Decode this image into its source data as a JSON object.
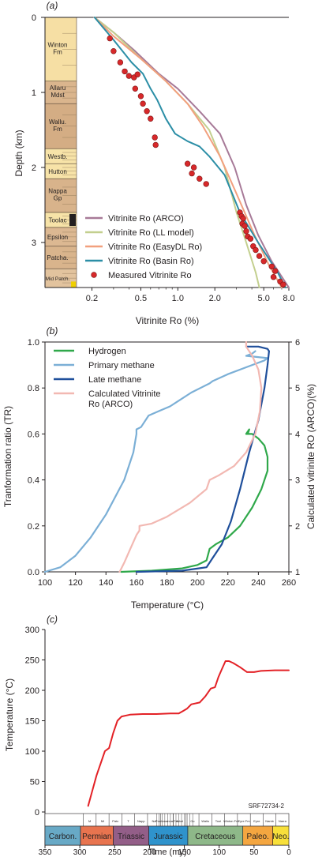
{
  "chart_data": [
    {
      "panel_label": "(a)",
      "type": "line",
      "xlabel": "Vitrinite Ro (%)",
      "ylabel": "Depth (km)",
      "x_scale": "log",
      "xlim": [
        0.15,
        8.0
      ],
      "ylim": [
        0,
        3.6
      ],
      "y_inverted": true,
      "xticks": [
        "0.2",
        "0.5",
        "1.0",
        "2.0",
        "5.0",
        "8.0"
      ],
      "yticks": [
        "0",
        "1",
        "2",
        "3"
      ],
      "stratigraphy": [
        {
          "name": "Winton\nFm",
          "top": 0.0,
          "base": 0.85,
          "color": "#f6dfa4"
        },
        {
          "name": "Allaru\nMdst",
          "top": 0.85,
          "base": 1.15,
          "color": "#dab58d"
        },
        {
          "name": "Wallu.\nFm",
          "top": 1.15,
          "base": 1.75,
          "color": "#d4ad84"
        },
        {
          "name": "Westb.",
          "top": 1.75,
          "base": 1.95,
          "color": "#f7e3a8"
        },
        {
          "name": "Hutton",
          "top": 1.95,
          "base": 2.15,
          "color": "#f7e3a8"
        },
        {
          "name": "Nappa\nGp",
          "top": 2.15,
          "base": 2.6,
          "color": "#d8b38b"
        },
        {
          "name": "Toolac",
          "top": 2.6,
          "base": 2.8,
          "color": "#f7e3a8"
        },
        {
          "name": "Epsilon",
          "top": 2.8,
          "base": 3.05,
          "color": "#dcb892"
        },
        {
          "name": "Patcha.",
          "top": 3.05,
          "base": 3.35,
          "color": "#d9b48c"
        },
        {
          "name": "Mid Patch.",
          "top": 3.35,
          "base": 3.6,
          "color": "#e2c39e"
        }
      ],
      "series": [
        {
          "name": "Vitrinite Ro (ARCO)",
          "color": "#a77a98",
          "style": "line",
          "points": [
            [
              0.21,
              0.0
            ],
            [
              0.3,
              0.2
            ],
            [
              0.45,
              0.45
            ],
            [
              0.7,
              0.75
            ],
            [
              1.0,
              0.95
            ],
            [
              1.5,
              1.25
            ],
            [
              2.2,
              1.55
            ],
            [
              2.9,
              2.0
            ],
            [
              3.6,
              2.5
            ],
            [
              4.5,
              2.9
            ],
            [
              5.8,
              3.25
            ],
            [
              8.0,
              3.6
            ]
          ]
        },
        {
          "name": "Vitrinite Ro (LL model)",
          "color": "#c3cf8e",
          "style": "line",
          "points": [
            [
              0.21,
              0.0
            ],
            [
              0.3,
              0.2
            ],
            [
              0.5,
              0.55
            ],
            [
              0.8,
              0.85
            ],
            [
              1.2,
              1.15
            ],
            [
              1.8,
              1.5
            ],
            [
              2.4,
              2.0
            ],
            [
              3.0,
              2.6
            ],
            [
              3.6,
              3.0
            ],
            [
              4.3,
              3.4
            ],
            [
              4.6,
              3.6
            ]
          ]
        },
        {
          "name": "Vitrinite Ro (EasyDL Ro)",
          "color": "#f2a07e",
          "style": "line",
          "points": [
            [
              0.21,
              0.0
            ],
            [
              0.3,
              0.25
            ],
            [
              0.5,
              0.55
            ],
            [
              0.8,
              0.85
            ],
            [
              1.2,
              1.15
            ],
            [
              1.6,
              1.45
            ],
            [
              2.2,
              1.85
            ],
            [
              3.0,
              2.35
            ],
            [
              4.2,
              2.9
            ],
            [
              5.5,
              3.3
            ],
            [
              7.0,
              3.6
            ]
          ]
        },
        {
          "name": "Vitrinite Ro (Basin Ro)",
          "color": "#2b8ea6",
          "style": "line",
          "points": [
            [
              0.21,
              0.0
            ],
            [
              0.3,
              0.3
            ],
            [
              0.42,
              0.6
            ],
            [
              0.52,
              0.75
            ],
            [
              0.6,
              0.95
            ],
            [
              0.68,
              1.1
            ],
            [
              0.8,
              1.35
            ],
            [
              0.95,
              1.55
            ],
            [
              1.2,
              1.65
            ],
            [
              1.5,
              1.72
            ],
            [
              1.8,
              1.85
            ],
            [
              2.4,
              2.1
            ],
            [
              3.2,
              2.6
            ],
            [
              4.5,
              3.0
            ],
            [
              6.5,
              3.4
            ],
            [
              7.5,
              3.6
            ]
          ]
        },
        {
          "name": "Measured Vitrinite Ro",
          "color": "#d7282a",
          "style": "marker",
          "points": [
            [
              0.28,
              0.28
            ],
            [
              0.3,
              0.45
            ],
            [
              0.34,
              0.6
            ],
            [
              0.37,
              0.72
            ],
            [
              0.4,
              0.78
            ],
            [
              0.44,
              0.8
            ],
            [
              0.47,
              0.76
            ],
            [
              0.45,
              0.95
            ],
            [
              0.5,
              1.05
            ],
            [
              0.52,
              1.15
            ],
            [
              0.56,
              1.25
            ],
            [
              0.6,
              1.35
            ],
            [
              0.65,
              1.6
            ],
            [
              0.66,
              1.7
            ],
            [
              1.2,
              1.95
            ],
            [
              1.35,
              2.0
            ],
            [
              1.3,
              2.08
            ],
            [
              1.5,
              2.15
            ],
            [
              1.7,
              2.22
            ],
            [
              3.2,
              2.6
            ],
            [
              3.3,
              2.65
            ],
            [
              3.4,
              2.68
            ],
            [
              3.35,
              2.75
            ],
            [
              3.5,
              2.78
            ],
            [
              3.6,
              2.85
            ],
            [
              3.7,
              2.92
            ],
            [
              3.9,
              2.95
            ],
            [
              4.1,
              3.05
            ],
            [
              4.3,
              3.1
            ],
            [
              4.6,
              3.18
            ],
            [
              5.0,
              3.25
            ],
            [
              5.8,
              3.32
            ],
            [
              6.2,
              3.38
            ],
            [
              6.0,
              3.46
            ],
            [
              6.8,
              3.52
            ],
            [
              7.2,
              3.56
            ]
          ]
        }
      ],
      "legend_position": "bottom-center"
    },
    {
      "panel_label": "(b)",
      "type": "line",
      "xlabel": "Temperature (°C)",
      "ylabel": "Tranformation ratio (TR)",
      "ylabel_right": "Calculated vitrinite RO (ARCO)(%)",
      "xlim": [
        100,
        260
      ],
      "ylim": [
        0,
        1.0
      ],
      "ylim_right": [
        1,
        6
      ],
      "xticks": [
        "100",
        "120",
        "140",
        "160",
        "180",
        "200",
        "220",
        "240",
        "260"
      ],
      "yticks": [
        "0.0",
        "0.2",
        "0.4",
        "0.6",
        "0.8",
        "1.0"
      ],
      "yticks_right": [
        "1",
        "2",
        "3",
        "4",
        "5",
        "6"
      ],
      "series": [
        {
          "name": "Hydrogen",
          "color": "#2fa84a",
          "axis": "left",
          "points": [
            [
              150,
              0.0
            ],
            [
              170,
              0.005
            ],
            [
              190,
              0.015
            ],
            [
              200,
              0.03
            ],
            [
              206,
              0.05
            ],
            [
              208,
              0.1
            ],
            [
              212,
              0.12
            ],
            [
              220,
              0.15
            ],
            [
              228,
              0.2
            ],
            [
              236,
              0.28
            ],
            [
              242,
              0.36
            ],
            [
              246,
              0.44
            ],
            [
              246,
              0.5
            ],
            [
              244,
              0.55
            ],
            [
              240,
              0.58
            ],
            [
              236,
              0.6
            ],
            [
              232,
              0.6
            ],
            [
              234,
              0.62
            ],
            [
              233,
              0.6
            ]
          ]
        },
        {
          "name": "Primary methane",
          "color": "#7bafd6",
          "axis": "left",
          "points": [
            [
              100,
              0.0
            ],
            [
              110,
              0.02
            ],
            [
              120,
              0.07
            ],
            [
              130,
              0.15
            ],
            [
              140,
              0.25
            ],
            [
              152,
              0.4
            ],
            [
              158,
              0.52
            ],
            [
              160,
              0.6
            ],
            [
              160,
              0.62
            ],
            [
              163,
              0.63
            ],
            [
              168,
              0.68
            ],
            [
              175,
              0.7
            ],
            [
              182,
              0.72
            ],
            [
              196,
              0.78
            ],
            [
              208,
              0.82
            ],
            [
              210,
              0.83
            ],
            [
              220,
              0.86
            ],
            [
              232,
              0.89
            ],
            [
              244,
              0.92
            ],
            [
              246,
              0.93
            ],
            [
              232,
              0.94
            ],
            [
              236,
              0.95
            ],
            [
              238,
              0.96
            ]
          ]
        },
        {
          "name": "Late methane",
          "color": "#1f4f9b",
          "axis": "left",
          "points": [
            [
              160,
              0.0
            ],
            [
              190,
              0.005
            ],
            [
              206,
              0.02
            ],
            [
              210,
              0.06
            ],
            [
              216,
              0.12
            ],
            [
              222,
              0.22
            ],
            [
              228,
              0.36
            ],
            [
              234,
              0.52
            ],
            [
              240,
              0.66
            ],
            [
              244,
              0.8
            ],
            [
              246,
              0.9
            ],
            [
              247,
              0.96
            ],
            [
              246,
              0.97
            ],
            [
              240,
              0.98
            ],
            [
              232,
              0.98
            ]
          ]
        },
        {
          "name": "Calculated Vitrinite\nRo (ARCO)",
          "color": "#f2b8b2",
          "axis": "right",
          "points": [
            [
              149,
              1.0
            ],
            [
              152,
              1.2
            ],
            [
              156,
              1.5
            ],
            [
              160,
              1.8
            ],
            [
              162,
              1.9
            ],
            [
              162,
              2.0
            ],
            [
              170,
              2.05
            ],
            [
              180,
              2.2
            ],
            [
              195,
              2.5
            ],
            [
              206,
              2.8
            ],
            [
              208,
              3.0
            ],
            [
              214,
              3.1
            ],
            [
              224,
              3.3
            ],
            [
              232,
              3.6
            ],
            [
              238,
              4.0
            ],
            [
              241,
              4.5
            ],
            [
              242,
              5.0
            ],
            [
              240,
              5.4
            ],
            [
              236,
              5.7
            ],
            [
              232,
              5.9
            ],
            [
              232,
              6.0
            ]
          ]
        }
      ],
      "legend_position": "top-left"
    },
    {
      "panel_label": "(c)",
      "type": "line",
      "xlabel": "Time (my)",
      "ylabel": "Temperature (°C)",
      "xlim": [
        350,
        0
      ],
      "ylim": [
        0,
        300
      ],
      "x_inverted": true,
      "xticks": [
        "350",
        "300",
        "250",
        "200",
        "150",
        "100",
        "50",
        "0"
      ],
      "yticks": [
        "0",
        "50",
        "100",
        "150",
        "200",
        "250",
        "300"
      ],
      "annotation": "SRF72734-2",
      "periods": [
        {
          "name": "Carbon.",
          "start": 350,
          "end": 299,
          "color": "#68a9c6"
        },
        {
          "name": "Permian",
          "start": 299,
          "end": 252,
          "color": "#e8744f"
        },
        {
          "name": "Triassic",
          "start": 252,
          "end": 201,
          "color": "#935e88"
        },
        {
          "name": "Jurassic",
          "start": 201,
          "end": 145,
          "color": "#2f93cc"
        },
        {
          "name": "Cretaceous",
          "start": 145,
          "end": 66,
          "color": "#8eb889"
        },
        {
          "name": "Paleo.",
          "start": 66,
          "end": 23,
          "color": "#f4a640"
        },
        {
          "name": "Neo.",
          "start": 23,
          "end": 0,
          "color": "#f8e03a"
        }
      ],
      "formations": [
        "M",
        "Mi",
        "Patc",
        "T",
        "Napp",
        "Na",
        "Poolowanna Fm",
        "Adori",
        "Cu",
        "Wallu",
        "Tool",
        "Winton Fm",
        "Eyre Fm",
        "Eyre",
        "Namb",
        "Narra"
      ],
      "series": [
        {
          "name": "",
          "color": "#e32126",
          "points": [
            [
              288,
              10
            ],
            [
              282,
              35
            ],
            [
              276,
              60
            ],
            [
              270,
              80
            ],
            [
              264,
              100
            ],
            [
              258,
              105
            ],
            [
              252,
              130
            ],
            [
              246,
              150
            ],
            [
              240,
              157
            ],
            [
              228,
              160
            ],
            [
              210,
              161
            ],
            [
              190,
              161
            ],
            [
              170,
              162
            ],
            [
              158,
              162
            ],
            [
              152,
              166
            ],
            [
              146,
              170
            ],
            [
              140,
              177
            ],
            [
              128,
              180
            ],
            [
              120,
              190
            ],
            [
              112,
              203
            ],
            [
              106,
              205
            ],
            [
              101,
              222
            ],
            [
              96,
              235
            ],
            [
              91,
              248
            ],
            [
              86,
              248
            ],
            [
              80,
              245
            ],
            [
              70,
              238
            ],
            [
              60,
              230
            ],
            [
              50,
              230
            ],
            [
              40,
              232
            ],
            [
              20,
              233
            ],
            [
              0,
              233
            ]
          ]
        }
      ]
    }
  ]
}
